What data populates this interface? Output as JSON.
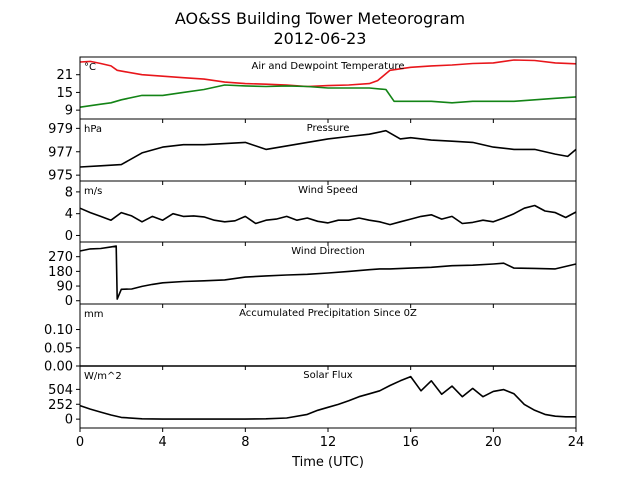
{
  "chart_data": {
    "type": "line",
    "title": "AO&SS Building Tower Meteorogram",
    "subtitle": "2012-06-23",
    "xlabel": "Time (UTC)",
    "xlim": [
      0,
      24
    ],
    "x_ticks": [
      "0",
      "4",
      "8",
      "12",
      "16",
      "20",
      "24"
    ],
    "panels": [
      {
        "key": "temp",
        "title": "Air and Dewpoint Temperature",
        "unit": "°C",
        "ylim": [
          6,
          27
        ],
        "y_ticks": [
          "9",
          "15",
          "21"
        ],
        "series": [
          {
            "color": "#e8161b",
            "x": [
              0,
              0.5,
              1,
              1.5,
              1.8,
              2.2,
              3,
              4,
              5,
              6,
              7,
              8,
              9,
              10,
              11,
              12,
              13,
              14,
              14.4,
              15,
              16,
              17,
              18,
              19,
              20,
              21,
              22,
              23,
              24
            ],
            "y": [
              25.3,
              25.5,
              24.8,
              24,
              22.5,
              22,
              21,
              20.5,
              20,
              19.5,
              18.5,
              18,
              17.8,
              17.5,
              17,
              17.3,
              17.5,
              18,
              19,
              22.5,
              23.5,
              24,
              24.3,
              24.8,
              25,
              26,
              25.8,
              25,
              24.7
            ]
          },
          {
            "color": "#138416",
            "x": [
              0,
              0.5,
              1,
              1.5,
              2,
              3,
              4,
              5,
              6,
              7,
              8,
              9,
              10,
              11,
              12,
              13,
              14,
              14.8,
              15.2,
              16,
              17,
              18,
              19,
              20,
              21,
              22,
              23,
              24
            ],
            "y": [
              10,
              10.5,
              11,
              11.5,
              12.5,
              14,
              14,
              15,
              16,
              17.5,
              17.2,
              17,
              17.2,
              17,
              16.5,
              16.5,
              16.5,
              16,
              12,
              12,
              12,
              11.5,
              12,
              12,
              12,
              12.5,
              13,
              13.5
            ]
          }
        ]
      },
      {
        "key": "pressure",
        "title": "Pressure",
        "unit": "hPa",
        "ylim": [
          974.5,
          979.8
        ],
        "y_ticks": [
          "975",
          "977",
          "979"
        ],
        "series": [
          {
            "color": "#000000",
            "x": [
              0,
              1,
              2,
              3,
              4,
              5,
              6,
              7,
              8,
              9,
              10,
              11,
              12,
              13,
              14,
              14.8,
              15.5,
              16,
              17,
              18,
              19,
              20,
              21,
              22,
              23,
              23.6,
              24
            ],
            "y": [
              975.7,
              975.8,
              975.9,
              976.9,
              977.4,
              977.6,
              977.6,
              977.7,
              977.8,
              977.2,
              977.5,
              977.8,
              978.1,
              978.3,
              978.5,
              978.8,
              978.1,
              978.2,
              978,
              977.9,
              977.8,
              977.4,
              977.2,
              977.2,
              976.8,
              976.6,
              977.2
            ]
          }
        ]
      },
      {
        "key": "wind_speed",
        "title": "Wind Speed",
        "unit": "m/s",
        "ylim": [
          -1.2,
          10
        ],
        "y_ticks": [
          "0",
          "4",
          "8"
        ],
        "series": [
          {
            "color": "#000000",
            "x": [
              0,
              0.5,
              1,
              1.5,
              2,
              2.5,
              3,
              3.5,
              4,
              4.5,
              5,
              5.5,
              6,
              6.5,
              7,
              7.5,
              8,
              8.5,
              9,
              9.5,
              10,
              10.5,
              11,
              11.5,
              12,
              12.5,
              13,
              13.5,
              14,
              14.5,
              15,
              15.5,
              16,
              16.5,
              17,
              17.5,
              18,
              18.5,
              19,
              19.5,
              20,
              20.5,
              21,
              21.5,
              22,
              22.5,
              23,
              23.5,
              24
            ],
            "y": [
              5,
              4.2,
              3.5,
              2.8,
              4.2,
              3.6,
              2.5,
              3.5,
              2.8,
              4,
              3.5,
              3.6,
              3.4,
              2.8,
              2.5,
              2.7,
              3.5,
              2.2,
              2.8,
              3,
              3.5,
              2.8,
              3.2,
              2.6,
              2.3,
              2.8,
              2.8,
              3.2,
              2.8,
              2.5,
              2,
              2.5,
              3,
              3.5,
              3.8,
              3,
              3.5,
              2.2,
              2.4,
              2.8,
              2.5,
              3.2,
              4,
              5,
              5.5,
              4.5,
              4.2,
              3.3,
              4.3
            ]
          }
        ]
      },
      {
        "key": "wind_direction",
        "title": "Wind Direction",
        "unit": "",
        "ylim": [
          -20,
          360
        ],
        "y_ticks": [
          "0",
          "90",
          "180",
          "270"
        ],
        "series": [
          {
            "color": "#000000",
            "x": [
              0,
              0.5,
              1,
              1.5,
              1.75,
              1.8,
              2,
              2.5,
              3,
              3.5,
              4,
              5,
              6,
              7,
              8,
              9,
              10,
              11,
              12,
              13,
              14,
              14.5,
              15,
              16,
              17,
              18,
              19,
              20,
              20.5,
              21,
              22,
              23,
              24
            ],
            "y": [
              305,
              318,
              320,
              330,
              335,
              10,
              70,
              72,
              88,
              100,
              110,
              118,
              122,
              128,
              145,
              152,
              158,
              162,
              170,
              180,
              190,
              195,
              195,
              200,
              205,
              215,
              218,
              225,
              230,
              200,
              198,
              195,
              225
            ]
          }
        ]
      },
      {
        "key": "precip",
        "title": "Accumulated Precipitation Since 0Z",
        "unit": "mm",
        "ylim": [
          0,
          0.17
        ],
        "y_ticks": [
          "0.00",
          "0.05",
          "0.10"
        ],
        "series": [
          {
            "color": "#000000",
            "x": [
              0,
              24
            ],
            "y": [
              0,
              0
            ]
          }
        ]
      },
      {
        "key": "solar",
        "title": "Solar Flux",
        "unit": "W/m^2",
        "ylim": [
          -150,
          900
        ],
        "y_ticks": [
          "0",
          "252",
          "504"
        ],
        "series": [
          {
            "color": "#000000",
            "x": [
              0,
              0.5,
              1,
              1.5,
              2,
              3,
              4,
              5,
              6,
              7,
              8,
              9,
              10,
              11,
              11.5,
              12,
              12.5,
              13,
              13.5,
              14,
              14.5,
              15,
              15.5,
              16,
              16.5,
              17,
              17.5,
              18,
              18.5,
              19,
              19.5,
              20,
              20.5,
              21,
              21.5,
              22,
              22.5,
              23,
              23.5,
              24
            ],
            "y": [
              230,
              170,
              120,
              70,
              30,
              5,
              0,
              0,
              0,
              0,
              0,
              5,
              20,
              80,
              150,
              200,
              250,
              310,
              380,
              430,
              480,
              570,
              650,
              720,
              480,
              650,
              420,
              560,
              380,
              520,
              380,
              470,
              500,
              430,
              250,
              150,
              80,
              50,
              40,
              40
            ]
          }
        ]
      }
    ]
  }
}
